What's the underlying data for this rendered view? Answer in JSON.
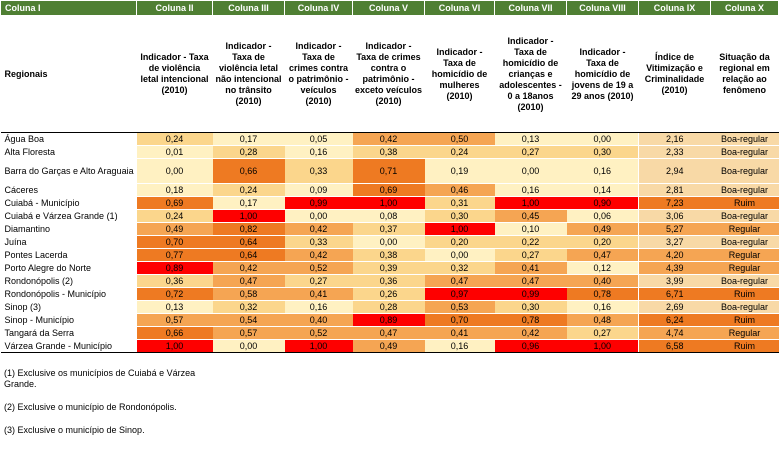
{
  "columns": [
    "Coluna I",
    "Coluna II",
    "Coluna III",
    "Coluna IV",
    "Coluna V",
    "Coluna VI",
    "Coluna VII",
    "Coluna VIII",
    "Coluna IX",
    "Coluna  X"
  ],
  "subheaders": [
    "Regionais",
    "Indicador - Taxa de violência letal intencional (2010)",
    "Indicador - Taxa de violência letal não intencional no trânsito (2010)",
    "Indicador - Taxa de crimes contra o patrimônio - veículos (2010)",
    "Indicador - Taxa de crimes contra o patrimônio - exceto veículos (2010)",
    "Indicador - Taxa de homicídio de mulheres (2010)",
    "Indicador - Taxa de homicídio de crianças e adolescentes - 0 a 18anos (2010)",
    "Indicador - Taxa de homicídio de jovens de 19 a 29 anos (2010)",
    "Índice de Vitimização e Criminalidade (2010)",
    "Situação da regional em relação ao fenômeno"
  ],
  "colors": {
    "header_bg": "#4f7f33",
    "scale": [
      "#fff1c2",
      "#fbd68c",
      "#f5a553",
      "#ee7a22",
      "#fe0000"
    ],
    "index": {
      "Boa-regular": "#f8d9a6",
      "Regular": "#f5a553",
      "Ruim": "#ee7a22"
    }
  },
  "rows": [
    {
      "name": "Água Boa",
      "v": [
        "0,24",
        "0,17",
        "0,05",
        "0,42",
        "0,50",
        "0,13",
        "0,00"
      ],
      "ix": "2,16",
      "sit": "Boa-regular"
    },
    {
      "name": "Alta Floresta",
      "v": [
        "0,01",
        "0,28",
        "0,16",
        "0,38",
        "0,24",
        "0,27",
        "0,30"
      ],
      "ix": "2,33",
      "sit": "Boa-regular"
    },
    {
      "name": "Barra do Garças e Alto Araguaia",
      "v": [
        "0,00",
        "0,66",
        "0,33",
        "0,71",
        "0,19",
        "0,00",
        "0,16"
      ],
      "ix": "2,94",
      "sit": "Boa-regular"
    },
    {
      "name": "Cáceres",
      "v": [
        "0,18",
        "0,24",
        "0,09",
        "0,69",
        "0,46",
        "0,16",
        "0,14"
      ],
      "ix": "2,81",
      "sit": "Boa-regular"
    },
    {
      "name": "Cuiabá - Município",
      "v": [
        "0,69",
        "0,17",
        "0,99",
        "1,00",
        "0,31",
        "1,00",
        "0,90"
      ],
      "ix": "7,23",
      "sit": "Ruim"
    },
    {
      "name": "Cuiabá e Várzea Grande (1)",
      "v": [
        "0,24",
        "1,00",
        "0,00",
        "0,08",
        "0,30",
        "0,45",
        "0,06"
      ],
      "ix": "3,06",
      "sit": "Boa-regular"
    },
    {
      "name": "Diamantino",
      "v": [
        "0,49",
        "0,82",
        "0,42",
        "0,37",
        "1,00",
        "0,10",
        "0,49"
      ],
      "ix": "5,27",
      "sit": "Regular"
    },
    {
      "name": "Juína",
      "v": [
        "0,70",
        "0,64",
        "0,33",
        "0,00",
        "0,20",
        "0,22",
        "0,20"
      ],
      "ix": "3,27",
      "sit": "Boa-regular"
    },
    {
      "name": "Pontes Lacerda",
      "v": [
        "0,77",
        "0,64",
        "0,42",
        "0,38",
        "0,00",
        "0,27",
        "0,47"
      ],
      "ix": "4,20",
      "sit": "Regular"
    },
    {
      "name": "Porto Alegre do Norte",
      "v": [
        "0,89",
        "0,42",
        "0,52",
        "0,39",
        "0,32",
        "0,41",
        "0,12"
      ],
      "ix": "4,39",
      "sit": "Regular"
    },
    {
      "name": "Rondonópolis (2)",
      "v": [
        "0,36",
        "0,47",
        "0,27",
        "0,36",
        "0,47",
        "0,47",
        "0,40"
      ],
      "ix": "3,99",
      "sit": "Boa-regular"
    },
    {
      "name": "Rondonópolis - Município",
      "v": [
        "0,72",
        "0,58",
        "0,41",
        "0,26",
        "0,97",
        "0,99",
        "0,78"
      ],
      "ix": "6,71",
      "sit": "Ruim"
    },
    {
      "name": "Sinop (3)",
      "v": [
        "0,13",
        "0,32",
        "0,16",
        "0,28",
        "0,53",
        "0,30",
        "0,16"
      ],
      "ix": "2,69",
      "sit": "Boa-regular"
    },
    {
      "name": "Sinop - Município",
      "v": [
        "0,57",
        "0,54",
        "0,40",
        "0,89",
        "0,70",
        "0,78",
        "0,48"
      ],
      "ix": "6,24",
      "sit": "Ruim"
    },
    {
      "name": "Tangará da Serra",
      "v": [
        "0,66",
        "0,57",
        "0,52",
        "0,47",
        "0,41",
        "0,42",
        "0,27"
      ],
      "ix": "4,74",
      "sit": "Regular"
    },
    {
      "name": "Várzea Grande - Município",
      "v": [
        "1,00",
        "0,00",
        "1,00",
        "0,49",
        "0,16",
        "0,96",
        "1,00"
      ],
      "ix": "6,58",
      "sit": "Ruim"
    }
  ],
  "notes": [
    "(1) Exclusive os municípios de Cuiabá e Várzea Grande.",
    "(2) Exclusive o município de Rondonópolis.",
    "(3) Exclusive o município de Sinop."
  ]
}
